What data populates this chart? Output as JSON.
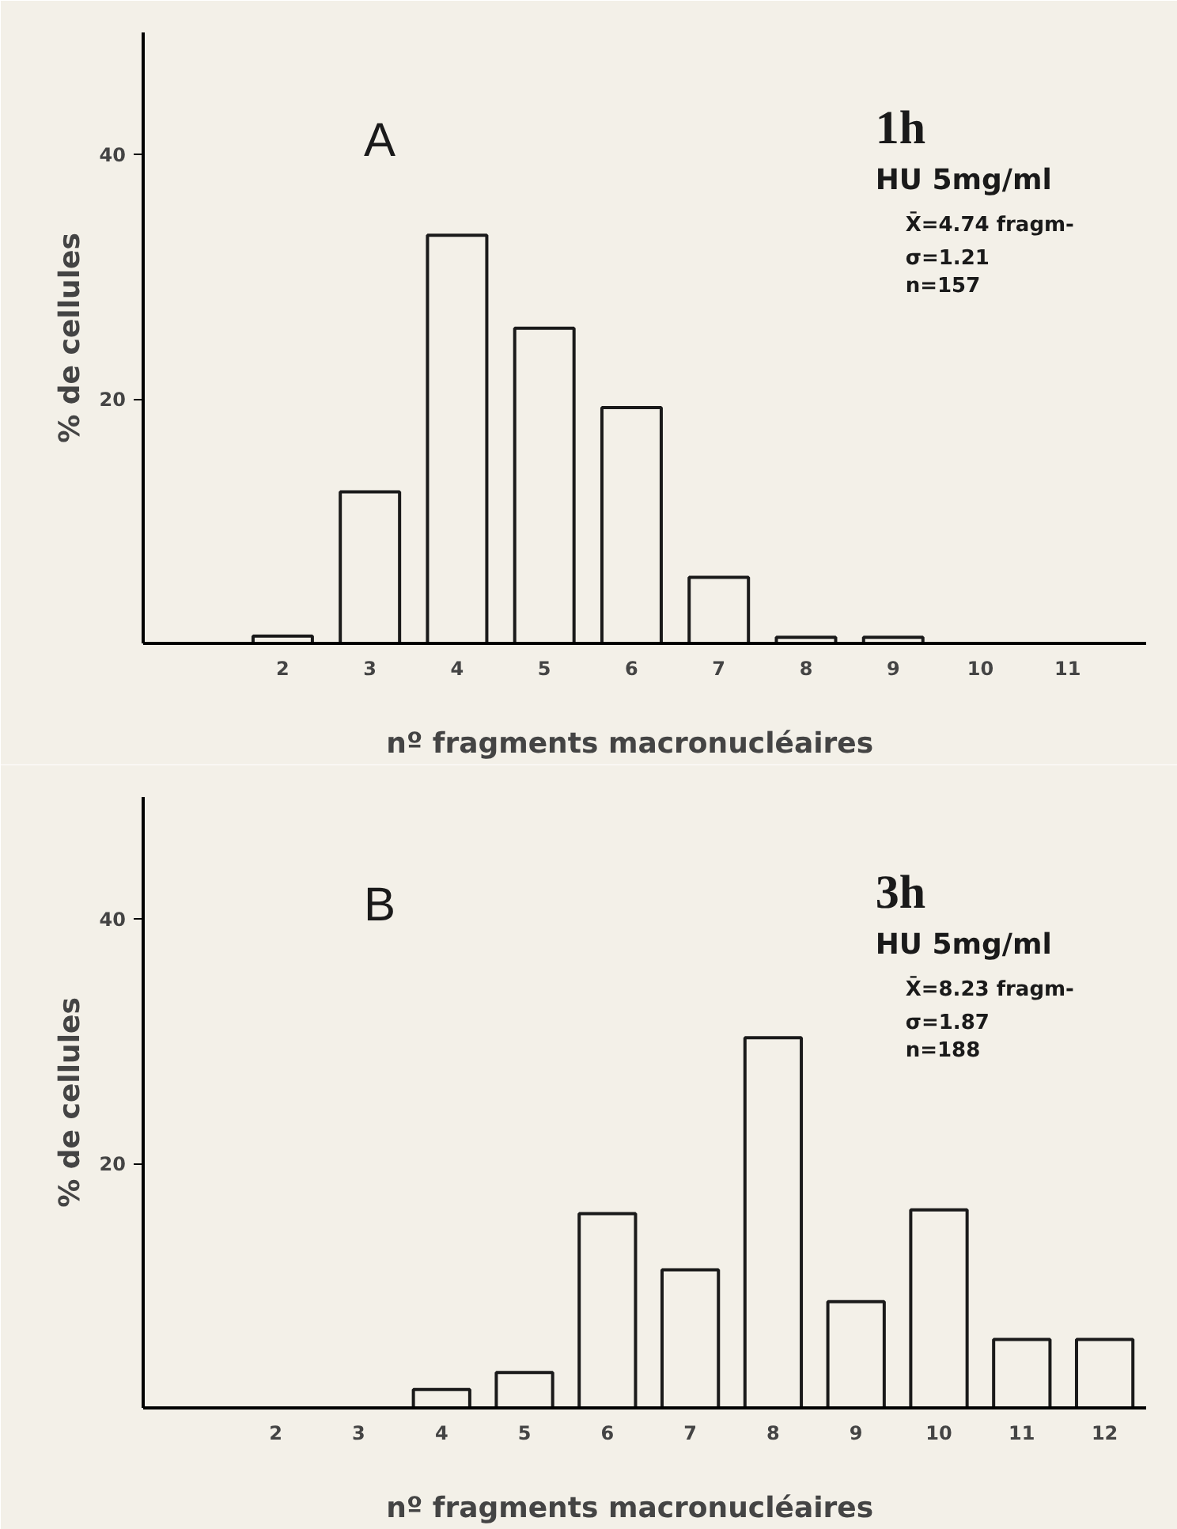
{
  "chart_data": [
    {
      "type": "bar",
      "x": [
        2,
        3,
        4,
        5,
        6,
        7,
        8,
        9,
        10,
        11
      ],
      "values": [
        0.6,
        12.4,
        33.4,
        25.8,
        19.3,
        5.4,
        0.5,
        0.5,
        0,
        0
      ],
      "color": "#1a1a1a",
      "xlabel": "nº fragments    macronucléaires",
      "ylabel": "% de cellules",
      "xlim": [
        0.4,
        11.9
      ],
      "xticks": [
        2,
        3,
        4,
        5,
        6,
        7,
        8,
        9,
        10,
        11
      ],
      "ylim": [
        0,
        50
      ],
      "yticks": [
        20,
        40
      ],
      "grid": false,
      "annotations": [
        "A",
        "1h",
        "HU 5mg/ml",
        "X̄=4.74 fragm-",
        "σ=1.21",
        "n=157"
      ]
    },
    {
      "type": "bar",
      "x": [
        2,
        3,
        4,
        5,
        6,
        7,
        8,
        9,
        10,
        11,
        12
      ],
      "values": [
        0,
        0,
        1.5,
        2.9,
        15.9,
        11.3,
        30.3,
        8.7,
        16.2,
        5.6,
        5.6
      ],
      "color": "#1a1a1a",
      "xlabel": "nº fragments    macronucléaires",
      "ylabel": "% de cellules",
      "xlim": [
        0.4,
        12.5
      ],
      "xticks": [
        2,
        3,
        4,
        5,
        6,
        7,
        8,
        9,
        10,
        11,
        12
      ],
      "ylim": [
        0,
        50
      ],
      "yticks": [
        20,
        40
      ],
      "grid": false,
      "annotations": [
        "B",
        "3h",
        "HU 5mg/ml",
        "X̄=8.23 fragm-",
        "σ=1.87",
        "n=188"
      ]
    }
  ]
}
